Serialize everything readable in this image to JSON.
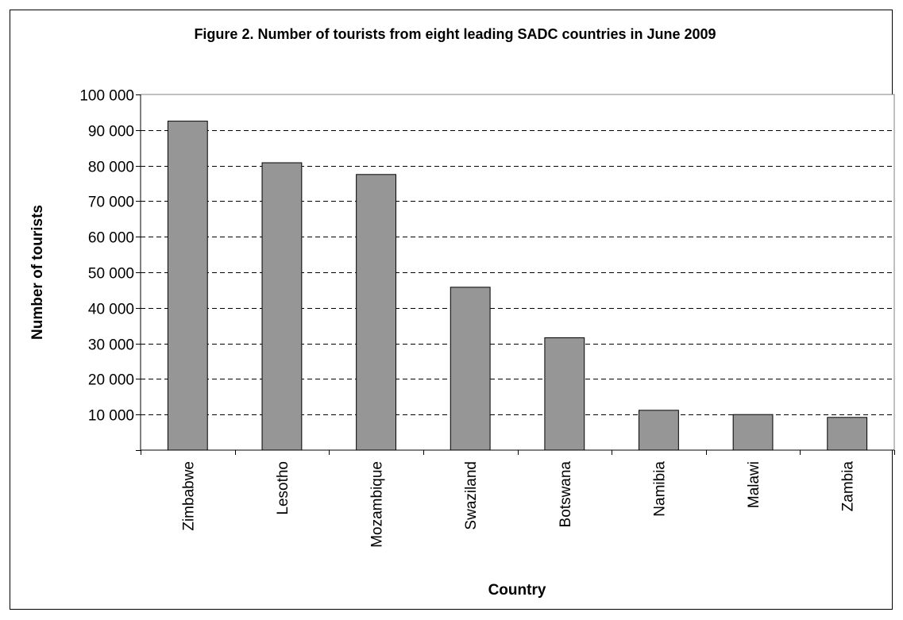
{
  "chart_data": {
    "type": "bar",
    "title": "Figure 2. Number of tourists from eight leading SADC countries in June 2009",
    "xlabel": "Country",
    "ylabel": "Number of tourists",
    "categories": [
      "Zimbabwe",
      "Lesotho",
      "Mozambique",
      "Swaziland",
      "Botswana",
      "Namibia",
      "Malawi",
      "Zambia"
    ],
    "values": [
      92500,
      80800,
      77500,
      45800,
      31600,
      11200,
      10000,
      9200
    ],
    "ylim": [
      0,
      100000
    ],
    "yticks": [
      0,
      10000,
      20000,
      30000,
      40000,
      50000,
      60000,
      70000,
      80000,
      90000,
      100000
    ],
    "ytick_labels": [
      "",
      "10 000",
      "20 000",
      "30 000",
      "40 000",
      "50 000",
      "60 000",
      "70 000",
      "80 000",
      "90 000",
      "100 000"
    ],
    "grid": "horizontal-dashed",
    "legend": "none",
    "bar_color": "#969696"
  }
}
